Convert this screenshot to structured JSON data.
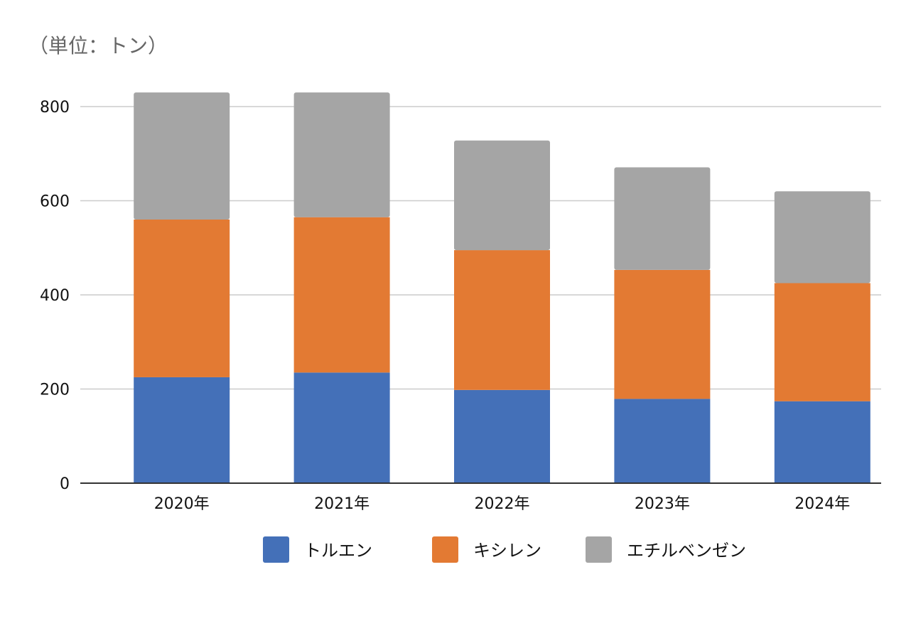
{
  "chart_data": {
    "type": "bar",
    "stacked": true,
    "unit_label": "（単位：トン）",
    "categories": [
      "2020年",
      "2021年",
      "2022年",
      "2023年",
      "2024年"
    ],
    "series": [
      {
        "name": "トルエン",
        "color": "#4470b8",
        "values": [
          225,
          235,
          198,
          179,
          174
        ]
      },
      {
        "name": "キシレン",
        "color": "#e37a33",
        "values": [
          335,
          330,
          297,
          274,
          251
        ]
      },
      {
        "name": "エチルベンゼン",
        "color": "#a5a5a5",
        "values": [
          270,
          265,
          233,
          218,
          195
        ]
      }
    ],
    "ylim": [
      0,
      800
    ],
    "yticks": [
      0,
      200,
      400,
      600,
      800
    ],
    "grid": true,
    "legend_position": "bottom"
  }
}
